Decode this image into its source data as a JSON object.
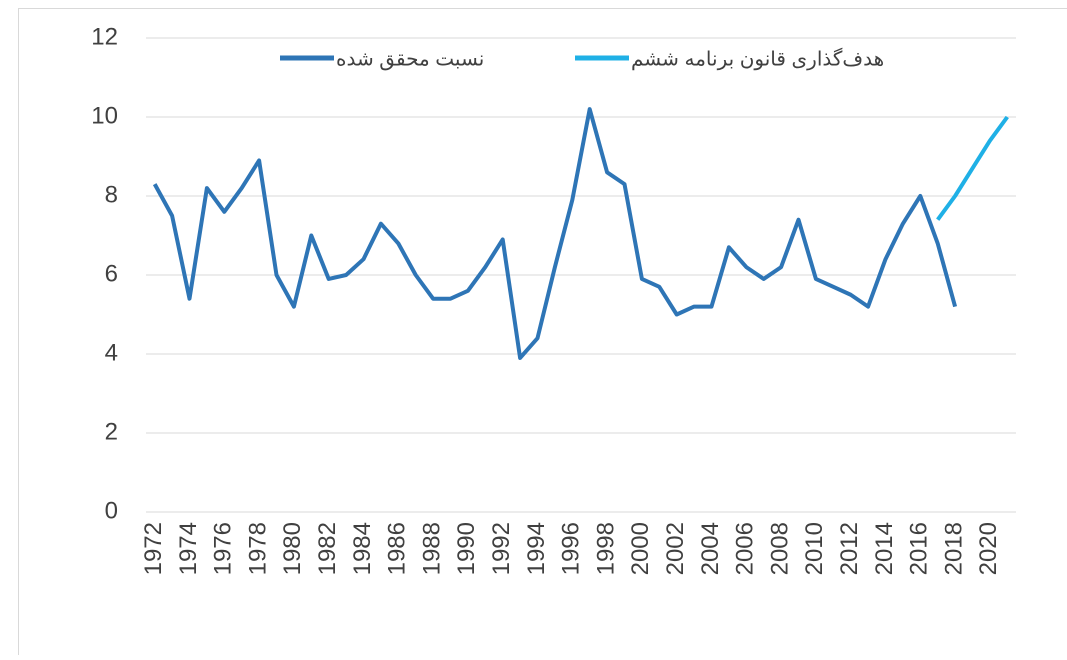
{
  "chart_data": {
    "type": "line",
    "x": [
      1972,
      1973,
      1974,
      1975,
      1976,
      1977,
      1978,
      1979,
      1980,
      1981,
      1982,
      1983,
      1984,
      1985,
      1986,
      1987,
      1988,
      1989,
      1990,
      1991,
      1992,
      1993,
      1994,
      1995,
      1996,
      1997,
      1998,
      1999,
      2000,
      2001,
      2002,
      2003,
      2004,
      2005,
      2006,
      2007,
      2008,
      2009,
      2010,
      2011,
      2012,
      2013,
      2014,
      2015,
      2016,
      2017,
      2018,
      2019,
      2020,
      2021
    ],
    "series": [
      {
        "name": "نسبت محقق شده",
        "color": "#2e75b6",
        "values": [
          8.3,
          7.5,
          5.4,
          8.2,
          7.6,
          8.2,
          8.9,
          6.0,
          5.2,
          7.0,
          5.9,
          6.0,
          6.4,
          7.3,
          6.8,
          6.0,
          5.4,
          5.4,
          5.6,
          6.2,
          6.9,
          3.9,
          4.4,
          6.2,
          7.9,
          10.2,
          8.6,
          8.3,
          5.9,
          5.7,
          5.0,
          5.2,
          5.2,
          6.7,
          6.2,
          5.9,
          6.2,
          7.4,
          5.9,
          5.7,
          5.5,
          5.2,
          6.4,
          7.3,
          8.0,
          6.8,
          5.2,
          null,
          null,
          null
        ]
      },
      {
        "name": "هدف‌گذاری قانون برنامه ششم",
        "color": "#1fb0e6",
        "values": [
          null,
          null,
          null,
          null,
          null,
          null,
          null,
          null,
          null,
          null,
          null,
          null,
          null,
          null,
          null,
          null,
          null,
          null,
          null,
          null,
          null,
          null,
          null,
          null,
          null,
          null,
          null,
          null,
          null,
          null,
          null,
          null,
          null,
          null,
          null,
          null,
          null,
          null,
          null,
          null,
          null,
          null,
          null,
          null,
          null,
          7.4,
          8.0,
          8.7,
          9.4,
          10.0
        ]
      }
    ],
    "xlim": [
      1971.5,
      2021.5
    ],
    "xticks": [
      1972,
      1974,
      1976,
      1978,
      1980,
      1982,
      1984,
      1986,
      1988,
      1990,
      1992,
      1994,
      1996,
      1998,
      2000,
      2002,
      2004,
      2006,
      2008,
      2010,
      2012,
      2014,
      2016,
      2018,
      2020
    ],
    "ylim": [
      0,
      12
    ],
    "yticks": [
      0,
      2,
      4,
      6,
      8,
      10,
      12
    ],
    "grid": true,
    "legend": "top"
  }
}
